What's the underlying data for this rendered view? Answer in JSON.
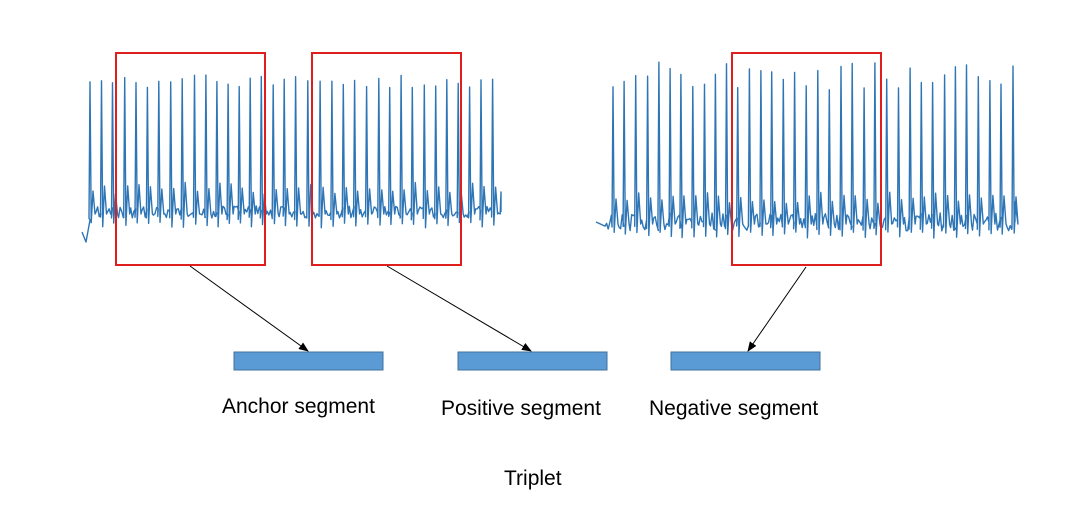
{
  "colors": {
    "signal": "#2E75B6",
    "window_border": "#E01E1E",
    "segment_fill": "#5B9BD5",
    "segment_border": "#41719C",
    "arrow": "#000000",
    "text": "#000000"
  },
  "labels": {
    "anchor": "Anchor segment",
    "positive": "Positive segment",
    "negative": "Negative segment",
    "triplet": "Triplet"
  }
}
